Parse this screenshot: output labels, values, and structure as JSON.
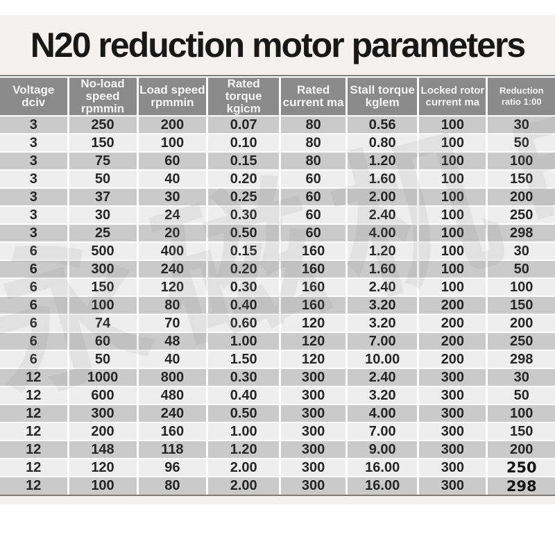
{
  "banner": {
    "title": "N20 reduction motor parameters"
  },
  "colors": {
    "band_bg": "#f3f2f1",
    "header_bg": "#8a8a8a",
    "row_dark": "#cacaca",
    "row_light": "#eeeeee"
  },
  "watermark": {
    "text": "永磁机电"
  },
  "table": {
    "headers": [
      "Voltage\ndciv",
      "No-load\nspeed\nrpmmin",
      "Load speed\nrpmmin",
      "Rated torque\nkgicm",
      "Rated\ncurrent ma",
      "Stall torque\nkglem",
      "Locked rotor\ncurrent ma",
      "Reduction\nratio 1:00"
    ],
    "header_sizes": [
      "normal",
      "normal",
      "normal",
      "normal",
      "normal",
      "normal",
      "small",
      "xsmall"
    ],
    "rows": [
      [
        "3",
        "250",
        "200",
        "0.07",
        "80",
        "0.56",
        "100",
        "30"
      ],
      [
        "3",
        "150",
        "100",
        "0.10",
        "80",
        "0.80",
        "100",
        "50"
      ],
      [
        "3",
        "75",
        "60",
        "0.15",
        "80",
        "1.20",
        "100",
        "100"
      ],
      [
        "3",
        "50",
        "40",
        "0.20",
        "60",
        "1.60",
        "100",
        "150"
      ],
      [
        "3",
        "37",
        "30",
        "0.25",
        "60",
        "2.00",
        "100",
        "200"
      ],
      [
        "3",
        "30",
        "24",
        "0.30",
        "60",
        "2.40",
        "100",
        "250"
      ],
      [
        "3",
        "25",
        "20",
        "0.50",
        "60",
        "4.00",
        "100",
        "298"
      ],
      [
        "6",
        "500",
        "400",
        "0.15",
        "160",
        "1.20",
        "100",
        "30"
      ],
      [
        "6",
        "300",
        "240",
        "0.20",
        "160",
        "1.60",
        "100",
        "50"
      ],
      [
        "6",
        "150",
        "120",
        "0.30",
        "160",
        "2.40",
        "100",
        "100"
      ],
      [
        "6",
        "100",
        "80",
        "0.40",
        "160",
        "3.20",
        "200",
        "150"
      ],
      [
        "6",
        "74",
        "70",
        "0.60",
        "120",
        "3.20",
        "200",
        "200"
      ],
      [
        "6",
        "60",
        "48",
        "1.00",
        "120",
        "7.00",
        "200",
        "250"
      ],
      [
        "6",
        "50",
        "40",
        "1.50",
        "120",
        "10.00",
        "200",
        "298"
      ],
      [
        "12",
        "1000",
        "800",
        "0.30",
        "300",
        "2.40",
        "300",
        "30"
      ],
      [
        "12",
        "600",
        "480",
        "0.40",
        "300",
        "3.20",
        "300",
        "50"
      ],
      [
        "12",
        "300",
        "240",
        "0.50",
        "300",
        "4.00",
        "300",
        "100"
      ],
      [
        "12",
        "200",
        "160",
        "1.00",
        "300",
        "7.00",
        "300",
        "150"
      ],
      [
        "12",
        "148",
        "118",
        "1.20",
        "300",
        "9.00",
        "300",
        "200"
      ],
      [
        "12",
        "120",
        "96",
        "2.00",
        "300",
        "16.00",
        "300",
        "250"
      ],
      [
        "12",
        "100",
        "80",
        "2.00",
        "300",
        "16.00",
        "300",
        "298"
      ]
    ]
  }
}
